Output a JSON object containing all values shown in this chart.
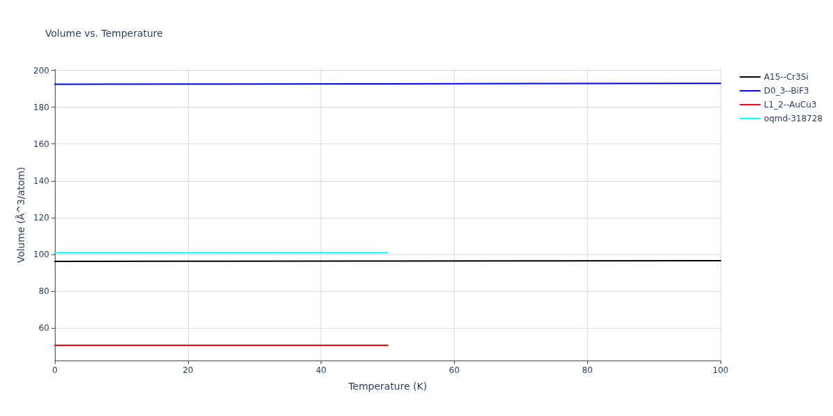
{
  "chart_data": {
    "type": "line",
    "title": "Volume vs. Temperature",
    "xlabel": "Temperature (K)",
    "ylabel": "Volume (Å^3/atom)",
    "xlim": [
      0,
      100
    ],
    "xticks": [
      0,
      20,
      40,
      60,
      80,
      100
    ],
    "ylim": [
      42.3,
      200.6
    ],
    "yticks": [
      60,
      80,
      100,
      120,
      140,
      160,
      180,
      200
    ],
    "grid": true,
    "legend": "top right",
    "marker": "none",
    "line_style": "solid",
    "series": [
      {
        "name": "A15--Cr3Si",
        "color": "#000000",
        "x": [
          0,
          25,
          50,
          75,
          100
        ],
        "values": [
          96.2,
          96.3,
          96.4,
          96.5,
          96.6
        ]
      },
      {
        "name": "D0_3--BiF3",
        "color": "#0000ff",
        "x": [
          0,
          25,
          50,
          75,
          100
        ],
        "values": [
          192.5,
          192.6,
          192.7,
          192.85,
          193.0
        ]
      },
      {
        "name": "L1_2--AuCu3",
        "color": "#ff0000",
        "x": [
          0,
          25,
          50
        ],
        "values": [
          50.6,
          50.6,
          50.6
        ]
      },
      {
        "name": "oqmd-318728",
        "color": "#00ffff",
        "x": [
          0,
          25,
          50
        ],
        "values": [
          100.9,
          100.9,
          100.9
        ]
      }
    ]
  }
}
